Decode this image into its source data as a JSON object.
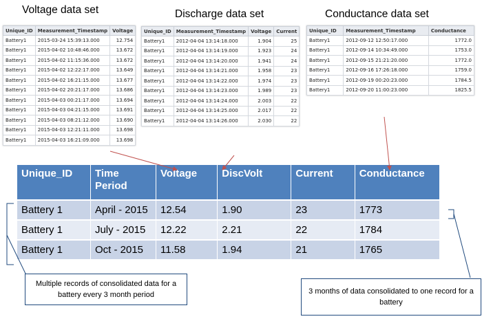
{
  "voltage": {
    "title": "Voltage data set",
    "columns": [
      "Unique_ID",
      "Measurement_Timestamp",
      "Voltage"
    ],
    "rows": [
      [
        "Battery1",
        "2015-03-24 15:39:13.000",
        "12.754"
      ],
      [
        "Battery1",
        "2015-04-02 10:48:46.000",
        "13.672"
      ],
      [
        "Battery1",
        "2015-04-02 11:15:36.000",
        "13.672"
      ],
      [
        "Battery1",
        "2015-04-02 12:22:17.000",
        "13.649"
      ],
      [
        "Battery1",
        "2015-04-02 16:21:15.000",
        "13.677"
      ],
      [
        "Battery1",
        "2015-04-02 20:21:17.000",
        "13.686"
      ],
      [
        "Battery1",
        "2015-04-03 00:21:17.000",
        "13.694"
      ],
      [
        "Battery1",
        "2015-04-03 04:21:15.000",
        "13.691"
      ],
      [
        "Battery1",
        "2015-04-03 08:21:12.000",
        "13.690"
      ],
      [
        "Battery1",
        "2015-04-03 12:21:11.000",
        "13.698"
      ],
      [
        "Battery1",
        "2015-04-03 16:21:09.000",
        "13.698"
      ]
    ]
  },
  "discharge": {
    "title": "Discharge data set",
    "columns": [
      "Unique_ID",
      "Measurement_Timestamp",
      "Voltage",
      "Current"
    ],
    "rows": [
      [
        "Battery1",
        "2012-04-04 13:14:18.000",
        "1.904",
        "25"
      ],
      [
        "Battery1",
        "2012-04-04 13:14:19.000",
        "1.923",
        "24"
      ],
      [
        "Battery1",
        "2012-04-04 13:14:20.000",
        "1.941",
        "24"
      ],
      [
        "Battery1",
        "2012-04-04 13:14:21.000",
        "1.958",
        "23"
      ],
      [
        "Battery1",
        "2012-04-04 13:14:22.000",
        "1.974",
        "23"
      ],
      [
        "Battery1",
        "2012-04-04 13:14:23.000",
        "1.989",
        "23"
      ],
      [
        "Battery1",
        "2012-04-04 13:14:24.000",
        "2.003",
        "22"
      ],
      [
        "Battery1",
        "2012-04-04 13:14:25.000",
        "2.017",
        "22"
      ],
      [
        "Battery1",
        "2012-04-04 13:14:26.000",
        "2.030",
        "22"
      ]
    ]
  },
  "conductance": {
    "title": "Conductance data set",
    "columns": [
      "Unique_ID",
      "Measurement_Timestamp",
      "Conductance"
    ],
    "rows": [
      [
        "Battery1",
        "2012-09-12 12:50:17.000",
        "1772.0"
      ],
      [
        "Battery1",
        "2012-09-14 10:34:49.000",
        "1753.0"
      ],
      [
        "Battery1",
        "2012-09-15 21:21:20.000",
        "1772.0"
      ],
      [
        "Battery1",
        "2012-09-16 17:26:18.000",
        "1759.0"
      ],
      [
        "Battery1",
        "2012-09-19 00:20:23.000",
        "1784.5"
      ],
      [
        "Battery1",
        "2012-09-20 11:00:23.000",
        "1825.5"
      ]
    ]
  },
  "consolidated": {
    "columns": [
      "Unique_ID",
      "Time Period",
      "Voltage",
      "DiscVolt",
      "Current",
      "Conductance"
    ],
    "rows": [
      [
        "Battery 1",
        "April - 2015",
        "12.54",
        "1.90",
        "23",
        "1773"
      ],
      [
        "Battery 1",
        "July - 2015",
        "12.22",
        "2.21",
        "22",
        "1784"
      ],
      [
        "Battery 1",
        "Oct - 2015",
        "11.58",
        "1.94",
        "21",
        "1765"
      ]
    ]
  },
  "callouts": {
    "left": "Multiple records of consolidated data for a battery every 3 month period",
    "right": "3 months of data consolidated to one record for a battery"
  },
  "colors": {
    "header_blue": "#4f81bd",
    "row_dark": "#c8d3e6",
    "row_light": "#e6ebf4",
    "arrow": "#c0504d",
    "callout_border": "#1f497d"
  }
}
